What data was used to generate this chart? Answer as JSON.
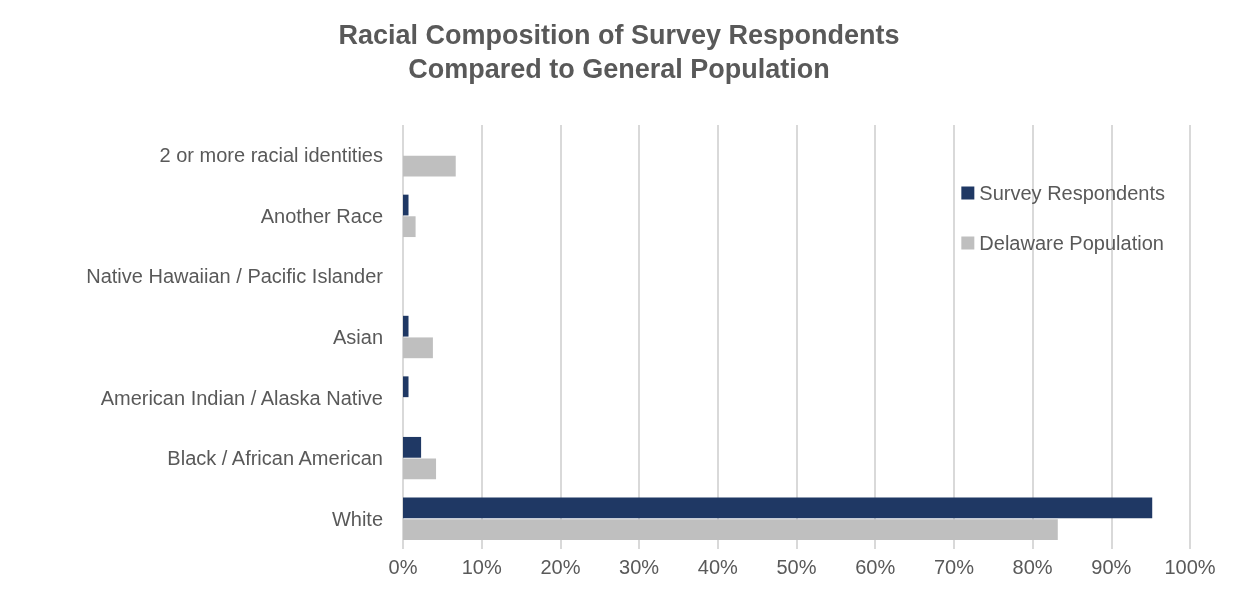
{
  "chart_data": {
    "type": "bar",
    "orientation": "horizontal",
    "title": "Racial Composition of Survey Respondents\nCompared to General Population",
    "categories": [
      "2 or more racial identities",
      "Another Race",
      "Native Hawaiian / Pacific Islander",
      "Asian",
      "American Indian / Alaska Native",
      "Black / African American",
      "White"
    ],
    "series": [
      {
        "name": "Survey Respondents",
        "color": "#1f3864",
        "values": [
          0,
          0.7,
          0,
          0.7,
          0.7,
          2.3,
          95.2
        ]
      },
      {
        "name": "Delaware Population",
        "color": "#bfbfbf",
        "values": [
          6.7,
          1.6,
          0,
          3.8,
          0,
          4.2,
          83.2
        ]
      }
    ],
    "xlim": [
      0,
      100
    ],
    "xticks": [
      {
        "value": 0,
        "label": "0%"
      },
      {
        "value": 10,
        "label": "10%"
      },
      {
        "value": 20,
        "label": "20%"
      },
      {
        "value": 30,
        "label": "30%"
      },
      {
        "value": 40,
        "label": "40%"
      },
      {
        "value": 50,
        "label": "50%"
      },
      {
        "value": 60,
        "label": "60%"
      },
      {
        "value": 70,
        "label": "70%"
      },
      {
        "value": 80,
        "label": "80%"
      },
      {
        "value": 90,
        "label": "90%"
      },
      {
        "value": 100,
        "label": "100%"
      }
    ],
    "grid": "x",
    "legend": "top right"
  }
}
